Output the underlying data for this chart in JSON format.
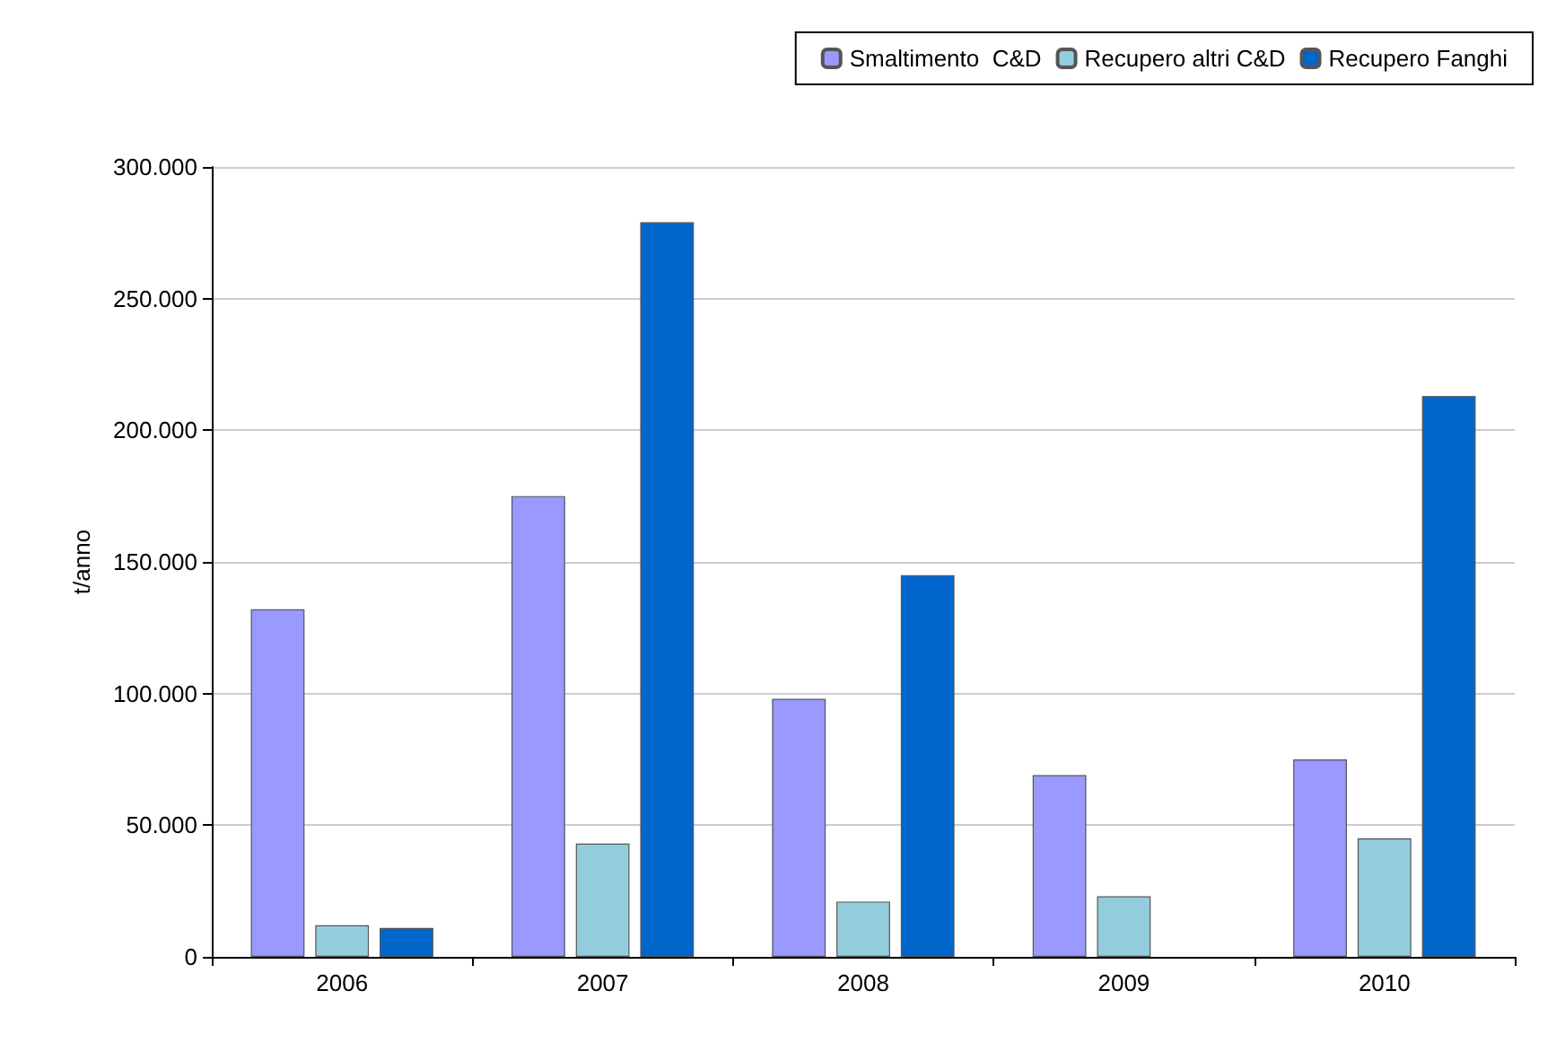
{
  "chart_data": {
    "type": "bar",
    "ylabel": "t/anno",
    "categories": [
      "2006",
      "2007",
      "2008",
      "2009",
      "2010"
    ],
    "series": [
      {
        "name": "Smaltimento  C&D",
        "color": "#9999ff",
        "values": [
          132000,
          175000,
          98000,
          69000,
          75000
        ]
      },
      {
        "name": "Recupero altri C&D",
        "color": "#93cddd",
        "values": [
          12000,
          43000,
          21000,
          23000,
          45000
        ]
      },
      {
        "name": "Recupero Fanghi",
        "color": "#0066cc",
        "values": [
          11000,
          279000,
          145000,
          null,
          213000
        ]
      }
    ],
    "ylim": [
      0,
      300000
    ],
    "yticks": [
      {
        "value": 0,
        "label": "0"
      },
      {
        "value": 50000,
        "label": "50.000"
      },
      {
        "value": 100000,
        "label": "100.000"
      },
      {
        "value": 150000,
        "label": "150.000"
      },
      {
        "value": 200000,
        "label": "200.000"
      },
      {
        "value": 250000,
        "label": "250.000"
      },
      {
        "value": 300000,
        "label": "300.000"
      }
    ],
    "grid": "y",
    "legend": "top right"
  }
}
